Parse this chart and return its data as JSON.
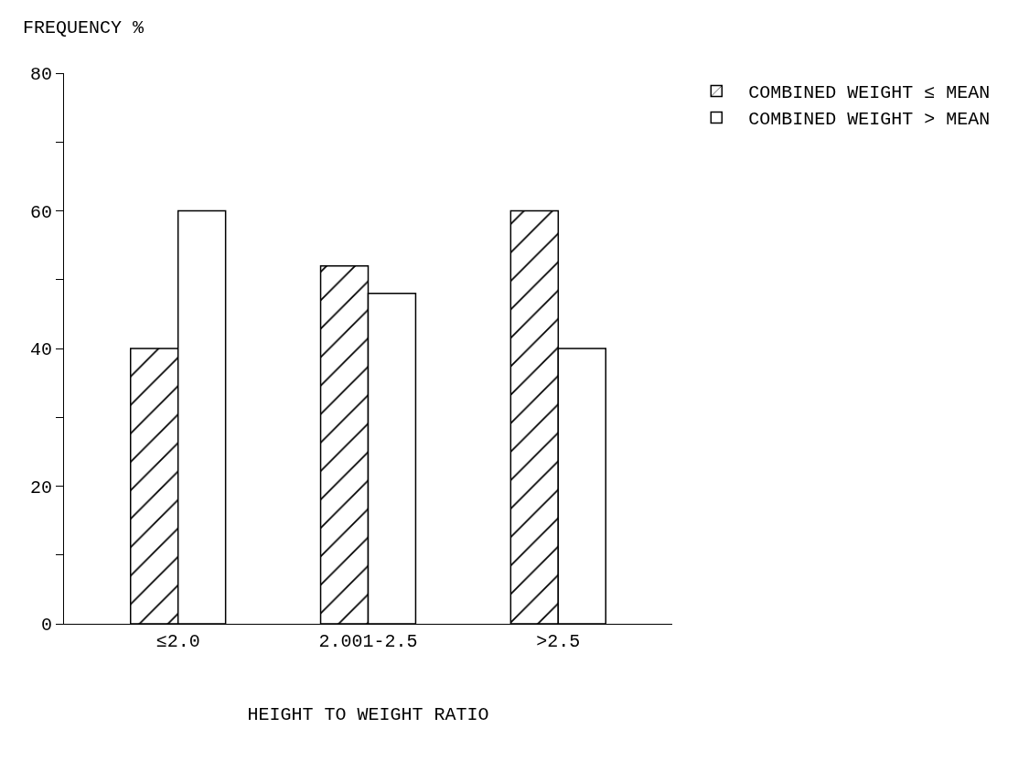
{
  "chart_data": {
    "type": "bar",
    "xlabel": "HEIGHT TO WEIGHT RATIO",
    "ylabel": "FREQUENCY %",
    "categories": [
      "≤2.0",
      "2.001-2.5",
      ">2.5"
    ],
    "series": [
      {
        "name": "COMBINED WEIGHT ≤ MEAN",
        "color": "#000000",
        "values": [
          40,
          52,
          60
        ]
      },
      {
        "name": "COMBINED WEIGHT > MEAN",
        "color": "#ffffff",
        "values": [
          60,
          48,
          40
        ]
      }
    ],
    "ylim": [
      0,
      80
    ],
    "yticks": [
      0,
      {
        "value": 10,
        "label": null
      },
      20,
      {
        "value": 30,
        "label": null
      },
      40,
      {
        "value": 50,
        "label": null
      },
      60,
      {
        "value": 70,
        "label": null
      },
      80
    ],
    "grid": false,
    "legend": "top right"
  }
}
